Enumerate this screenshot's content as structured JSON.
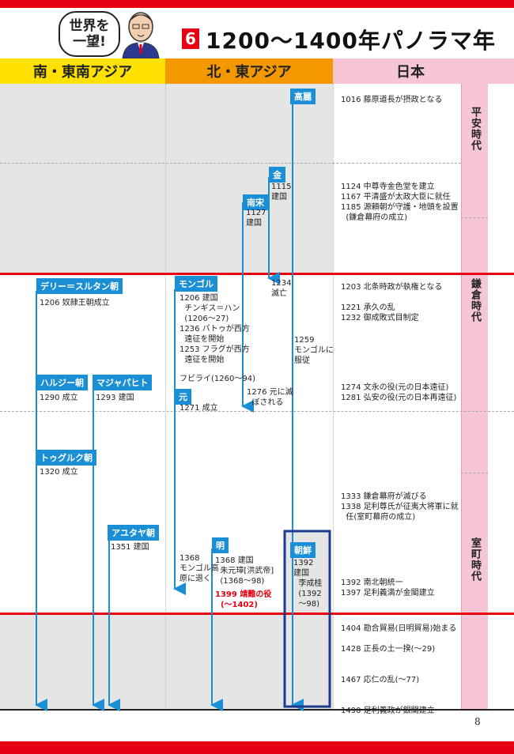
{
  "header": {
    "bubble_line1": "世界を",
    "bubble_line2": "一望!",
    "number": "6",
    "title": "1200〜1400年パノラマ年表"
  },
  "columns": {
    "south_east_asia": "南・東南アジア",
    "north_east_asia": "北・東アジア",
    "japan": "日本"
  },
  "labels": {
    "goryeo": "高麗",
    "jin": "金",
    "southern_song": "南宋",
    "delhi": "デリー＝スルタン朝",
    "mongol": "モンゴル",
    "khalji": "ハルジー朝",
    "majapahit": "マジャパヒト",
    "yuan": "元",
    "tughlaq": "トゥグルク朝",
    "ayutthaya": "アユタヤ朝",
    "ming": "明",
    "joseon": "朝鮮"
  },
  "notes": {
    "jin_1115": "1115\n建国",
    "song_1127": "1127\n建国",
    "jin_1234": "1234\n滅亡",
    "goryeo_1259": "1259\nモンゴルに\n服従",
    "delhi_1206": "1206 奴隷王朝成立",
    "mongol_1206": "1206 建国\n  チンギス＝ハン\n  (1206〜27)\n1236 バトゥが西方\n  遠征を開始\n1253 フラグが西方\n  遠征を開始",
    "yuan_kublai": "フビライ(1260〜94)",
    "song_1276": "1276 元に滅\n  ぼされる",
    "khalji_1290": "1290 成立",
    "majapahit_1293": "1293 建国",
    "yuan_1271": "1271 成立",
    "tughlaq_1320": "1320 成立",
    "ayutthaya_1351": "1351 建国",
    "yuan_1368": "1368\nモンゴル高\n原に退く",
    "ming_1368": "1368 建国\n  朱元璋[洪武帝]\n  (1368〜98)",
    "ming_1399": "1399 靖難の役\n  (〜1402)",
    "joseon_1392": "1392\n建国\n  李成桂\n  (1392\n  〜98)"
  },
  "japan_events": [
    "1016 藤原道長が摂政となる",
    "1124 中尊寺金色堂を建立\n1167 平清盛が太政大臣に就任\n1185 源頼朝が守護・地頭を設置\n  (鎌倉幕府の成立)",
    "1203 北条時政が執権となる\n\n1221 承久の乱\n1232 御成敗式目制定",
    "1274 文永の役(元の日本遠征)\n1281 弘安の役(元の日本再遠征)",
    "1333 鎌倉幕府が滅びる\n1338 足利尊氏が征夷大将軍に就\n  任(室町幕府の成立)",
    "1392 南北朝統一\n1397 足利義満が金閣建立",
    "1404 勘合貿易(日明貿易)始まる\n\n1428 正長の土一揆(〜29)\n\n\n1467 応仁の乱(〜77)\n\n\n1490 足利義政が銀閣建立"
  ],
  "eras": {
    "heian": "平安時代",
    "kamakura": "鎌倉時代",
    "muromachi": "室町時代"
  },
  "page_number": "8"
}
